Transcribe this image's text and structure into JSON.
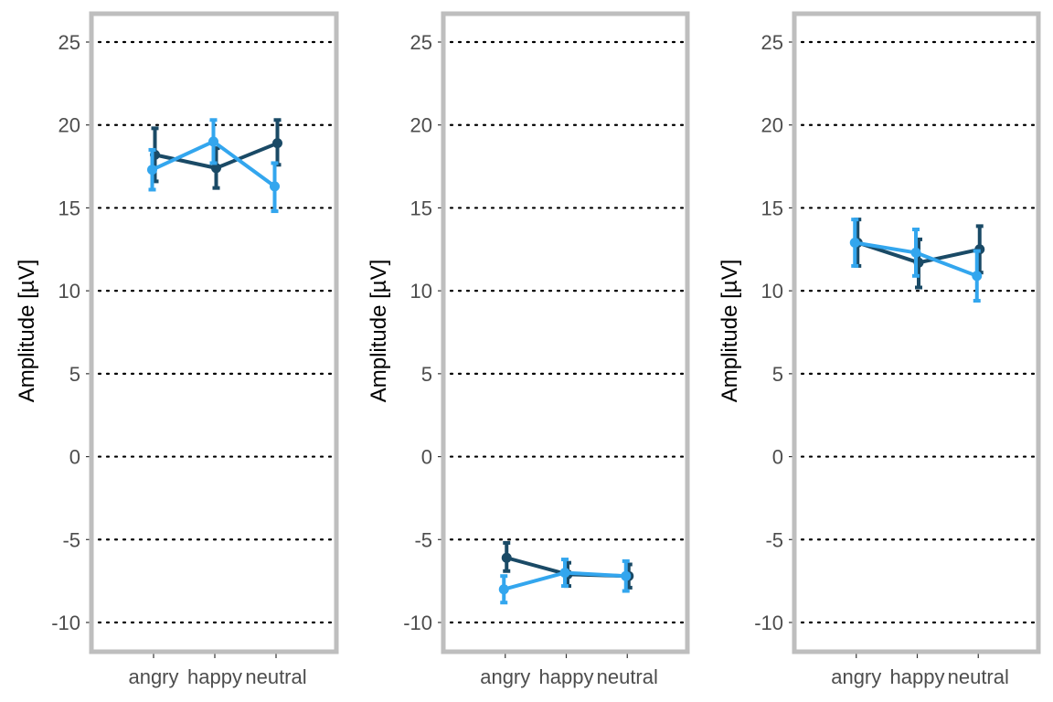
{
  "chart_data": [
    {
      "type": "line",
      "ylabel": "Amplitude [µV]",
      "categories": [
        "angry",
        "happy",
        "neutral"
      ],
      "y_ticks": [
        -10,
        -5,
        0,
        5,
        10,
        15,
        20,
        25
      ],
      "ylim": [
        -11.7,
        26.8
      ],
      "grid": "horizontal dotted",
      "series": [
        {
          "color": "#1a4a66",
          "values": [
            18.2,
            17.4,
            18.9
          ],
          "lower": [
            16.6,
            16.2,
            17.6
          ],
          "upper": [
            19.8,
            18.6,
            20.3
          ]
        },
        {
          "color": "#33a6ee",
          "values": [
            17.3,
            19.0,
            16.3
          ],
          "lower": [
            16.1,
            17.7,
            14.8
          ],
          "upper": [
            18.5,
            20.3,
            17.7
          ]
        }
      ]
    },
    {
      "type": "line",
      "ylabel": "Amplitude [µV]",
      "categories": [
        "angry",
        "happy",
        "neutral"
      ],
      "y_ticks": [
        -10,
        -5,
        0,
        5,
        10,
        15,
        20,
        25
      ],
      "ylim": [
        -11.7,
        26.8
      ],
      "grid": "horizontal dotted",
      "series": [
        {
          "color": "#1a4a66",
          "values": [
            -6.1,
            -7.1,
            -7.2
          ],
          "lower": [
            -6.9,
            -7.8,
            -7.9
          ],
          "upper": [
            -5.2,
            -6.4,
            -6.5
          ]
        },
        {
          "color": "#33a6ee",
          "values": [
            -8.0,
            -7.0,
            -7.2
          ],
          "lower": [
            -8.8,
            -7.8,
            -8.1
          ],
          "upper": [
            -7.2,
            -6.2,
            -6.3
          ]
        }
      ]
    },
    {
      "type": "line",
      "ylabel": "Amplitude [µV]",
      "categories": [
        "angry",
        "happy",
        "neutral"
      ],
      "y_ticks": [
        -10,
        -5,
        0,
        5,
        10,
        15,
        20,
        25
      ],
      "ylim": [
        -11.7,
        26.8
      ],
      "grid": "horizontal dotted",
      "series": [
        {
          "color": "#1a4a66",
          "values": [
            12.9,
            11.7,
            12.5
          ],
          "lower": [
            11.5,
            10.2,
            11.1
          ],
          "upper": [
            14.3,
            13.1,
            13.9
          ]
        },
        {
          "color": "#33a6ee",
          "values": [
            12.9,
            12.3,
            10.9
          ],
          "lower": [
            11.5,
            10.9,
            9.4
          ],
          "upper": [
            14.3,
            13.7,
            12.4
          ]
        }
      ]
    }
  ]
}
